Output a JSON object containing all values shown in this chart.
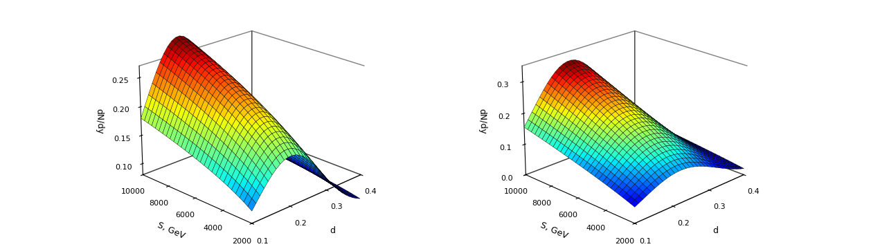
{
  "d_min": 0.1,
  "d_max": 0.4,
  "d_points": 30,
  "S_min": 2000,
  "S_max": 10000,
  "S_points": 30,
  "left_ylabel": "dN/dy",
  "right_ylabel": "dN/dy",
  "xlabel": "d",
  "zlabel": "S, GeV",
  "left_zticks": [
    2000,
    4000,
    6000,
    8000,
    10000
  ],
  "right_zticks": [
    2000,
    4000,
    6000,
    8000,
    10000
  ],
  "left_yticks": [
    0.1,
    0.15,
    0.2,
    0.25
  ],
  "right_yticks": [
    0,
    0.1,
    0.2,
    0.3
  ],
  "left_xticks": [
    0.1,
    0.2,
    0.3,
    0.4
  ],
  "right_xticks": [
    0.1,
    0.2,
    0.3,
    0.4
  ],
  "colormap": "jet",
  "fig_width": 12.71,
  "fig_height": 3.6,
  "elev1": 22,
  "azim1": -135,
  "elev2": 22,
  "azim2": -135
}
